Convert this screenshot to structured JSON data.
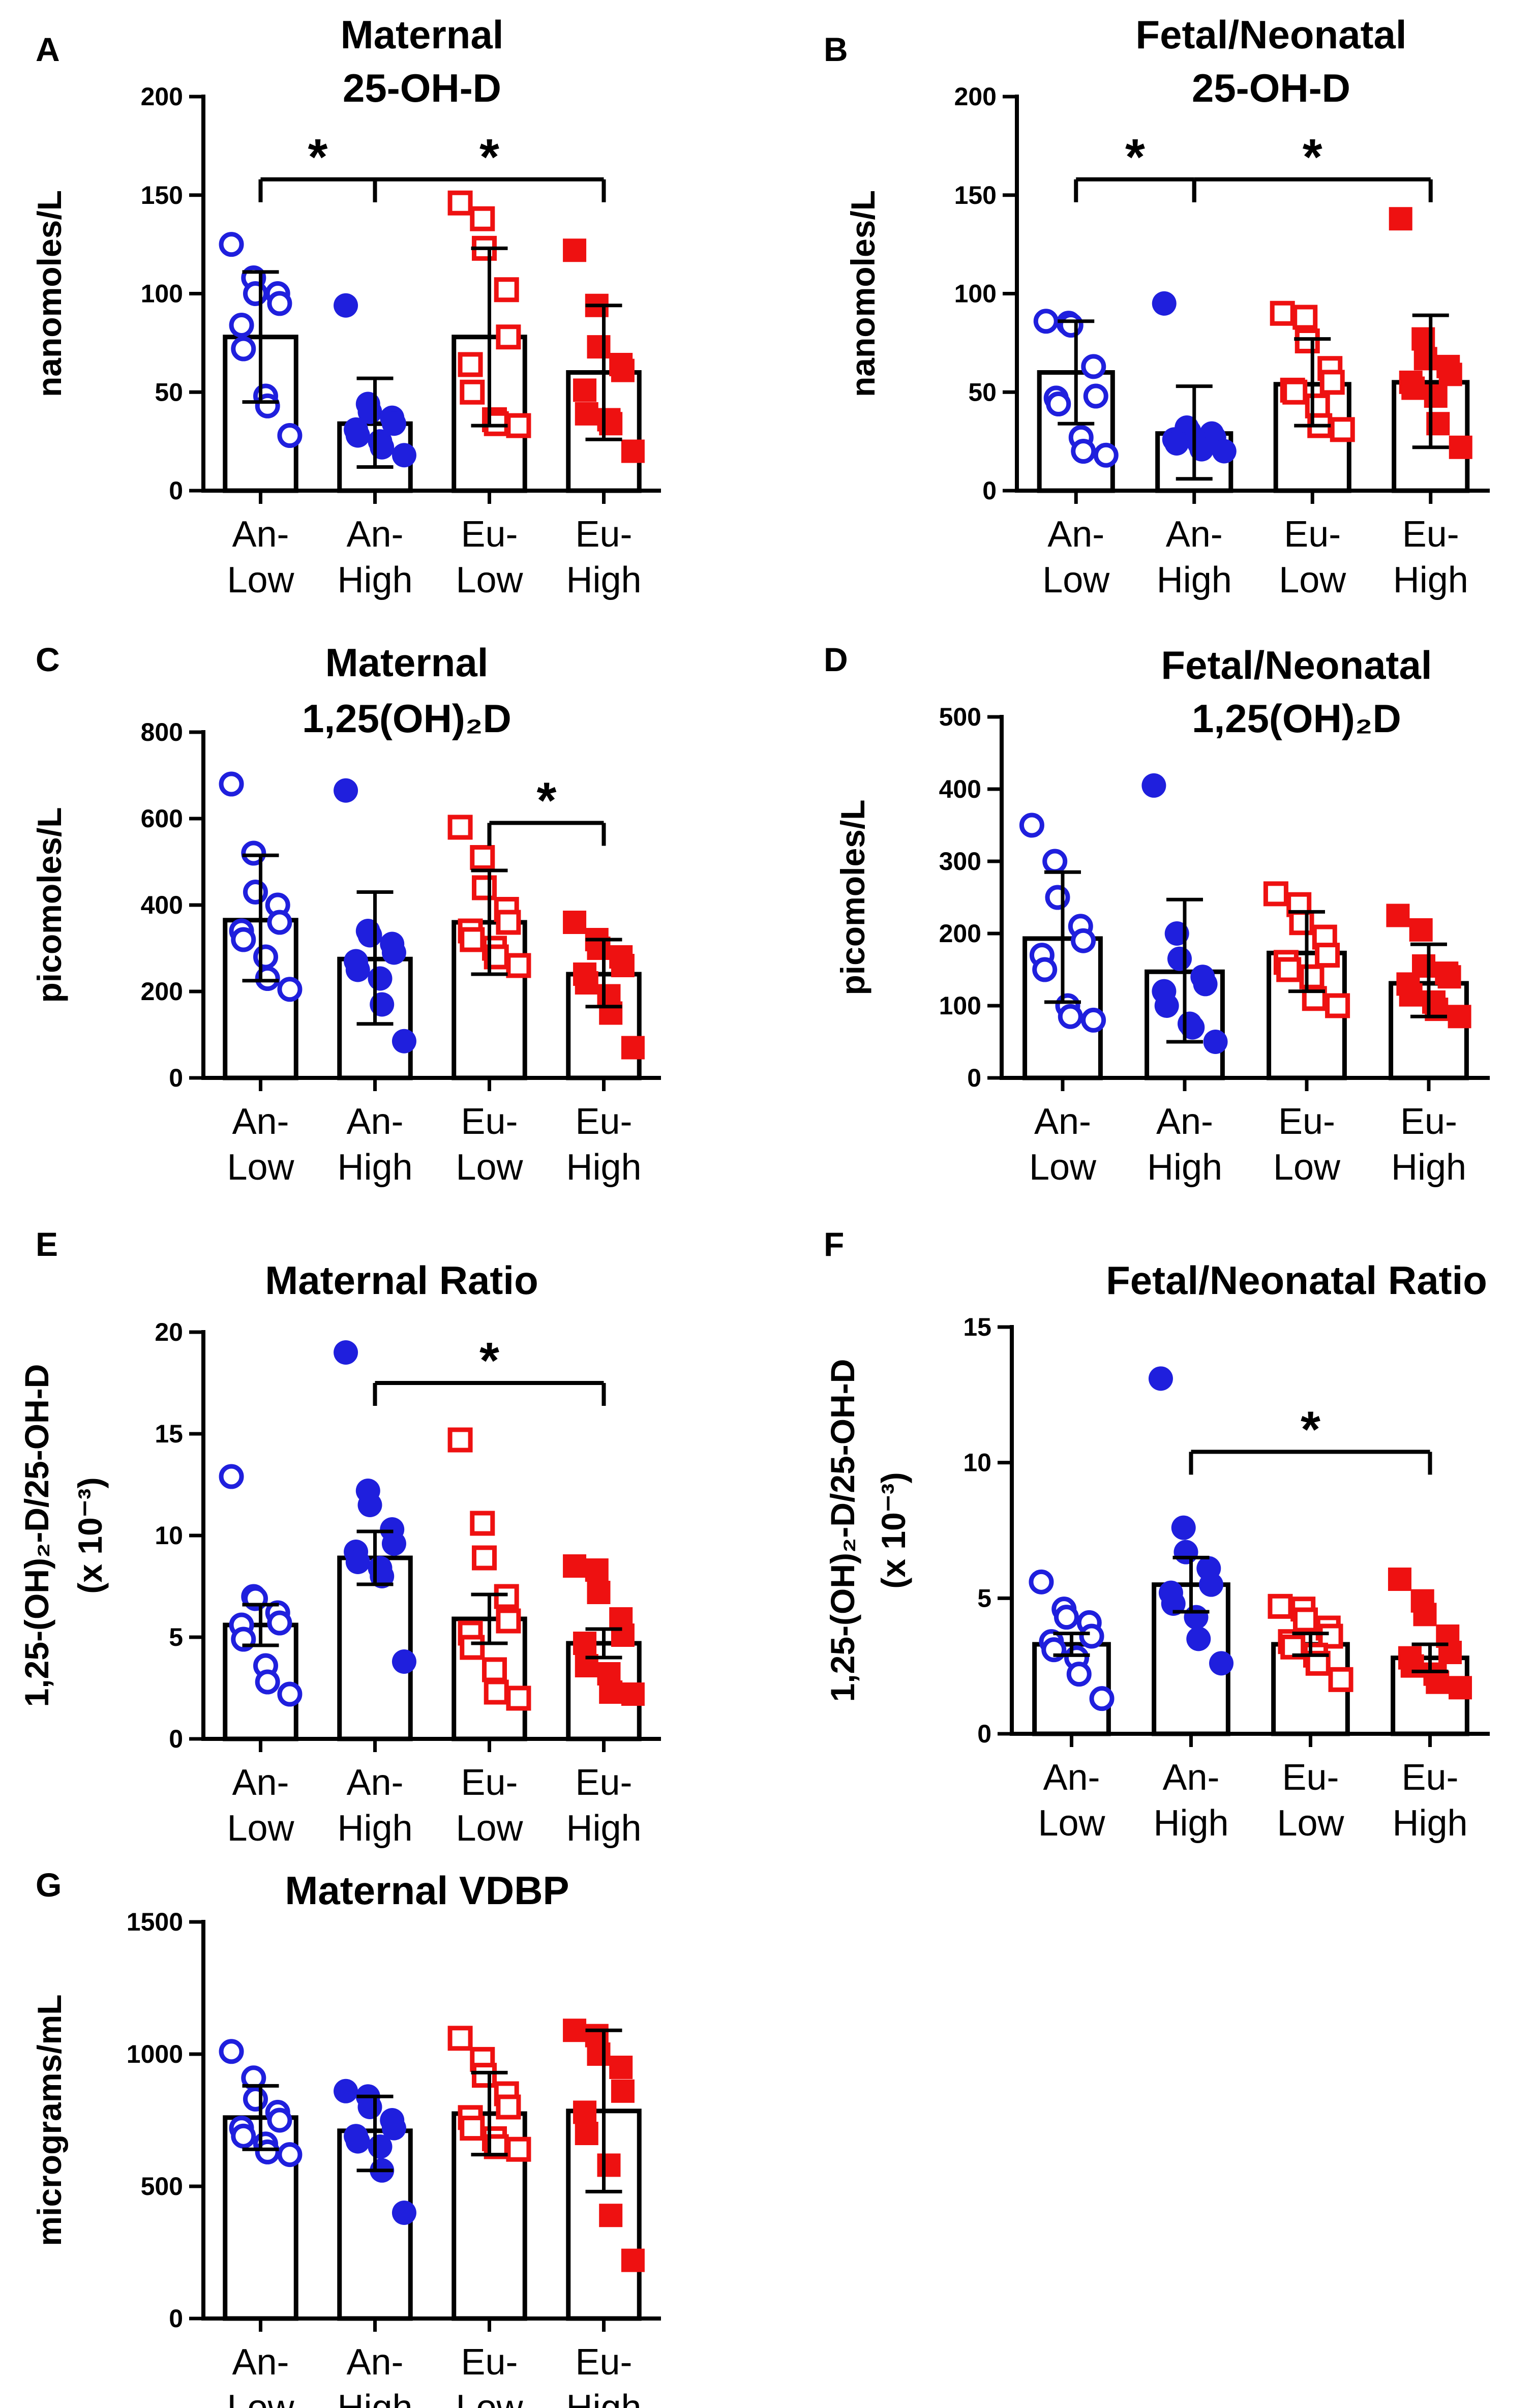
{
  "colors": {
    "an": "#1f1fdd",
    "eu": "#ee1111",
    "axis": "#000000"
  },
  "chart_data": [
    {
      "panel": "A",
      "title_lines": [
        "Maternal",
        "25-OH-D"
      ],
      "ylabel": "nanomoles/L",
      "type": "bar",
      "ylim": [
        0,
        200
      ],
      "yticks": [
        0,
        50,
        100,
        150,
        200
      ],
      "categories": [
        "An-Low",
        "An-High",
        "Eu-Low",
        "Eu-High"
      ],
      "cat_lines": [
        [
          "An-",
          "Low"
        ],
        [
          "An-",
          "High"
        ],
        [
          "Eu-",
          "Low"
        ],
        [
          "Eu-",
          "High"
        ]
      ],
      "means": [
        78,
        34,
        78,
        60
      ],
      "err_low": [
        45,
        12,
        33,
        26
      ],
      "err_high": [
        111,
        57,
        123,
        94
      ],
      "points": [
        [
          125,
          108,
          100,
          100,
          95,
          84,
          72,
          48,
          43,
          28
        ],
        [
          94,
          44,
          40,
          37,
          34,
          31,
          28,
          25,
          22,
          18
        ],
        [
          146,
          138,
          123,
          102,
          78,
          64,
          50,
          36,
          34,
          33
        ],
        [
          122,
          94,
          73,
          64,
          61,
          51,
          39,
          36,
          34,
          20
        ]
      ],
      "brackets": [
        {
          "from": 0,
          "to": 1,
          "label": "*"
        },
        {
          "from": 1,
          "to": 3,
          "label": "*"
        }
      ]
    },
    {
      "panel": "B",
      "title_lines": [
        "Fetal/Neonatal",
        "25-OH-D"
      ],
      "ylabel": "nanomoles/L",
      "type": "bar",
      "ylim": [
        0,
        200
      ],
      "yticks": [
        0,
        50,
        100,
        150,
        200
      ],
      "categories": [
        "An-Low",
        "An-High",
        "Eu-Low",
        "Eu-High"
      ],
      "cat_lines": [
        [
          "An-",
          "Low"
        ],
        [
          "An-",
          "High"
        ],
        [
          "Eu-",
          "Low"
        ],
        [
          "Eu-",
          "High"
        ]
      ],
      "means": [
        60,
        29,
        54,
        55
      ],
      "err_low": [
        34,
        6,
        33,
        22
      ],
      "err_high": [
        86,
        53,
        77,
        89
      ],
      "points": [
        [
          86,
          85,
          84,
          63,
          48,
          47,
          44,
          27,
          20,
          18
        ],
        [
          95,
          32,
          30,
          29,
          27,
          26,
          24,
          24,
          21,
          20
        ],
        [
          90,
          88,
          76,
          62,
          55,
          51,
          50,
          43,
          33,
          31
        ],
        [
          138,
          77,
          67,
          63,
          59,
          55,
          52,
          48,
          34,
          22
        ]
      ],
      "brackets": [
        {
          "from": 0,
          "to": 1,
          "label": "*"
        },
        {
          "from": 1,
          "to": 3,
          "label": "*"
        }
      ]
    },
    {
      "panel": "C",
      "title_lines": [
        "Maternal",
        "1,25(OH)₂D"
      ],
      "ylabel": "picomoles/L",
      "type": "bar",
      "ylim": [
        0,
        800
      ],
      "yticks": [
        0,
        200,
        400,
        600,
        800
      ],
      "categories": [
        "An-Low",
        "An-High",
        "Eu-Low",
        "Eu-High"
      ],
      "cat_lines": [
        [
          "An-",
          "Low"
        ],
        [
          "An-",
          "High"
        ],
        [
          "Eu-",
          "Low"
        ],
        [
          "Eu-",
          "High"
        ]
      ],
      "means": [
        365,
        275,
        360,
        240
      ],
      "err_low": [
        225,
        125,
        240,
        165
      ],
      "err_high": [
        515,
        430,
        480,
        320
      ],
      "points": [
        [
          680,
          520,
          430,
          400,
          360,
          340,
          320,
          280,
          230,
          205
        ],
        [
          665,
          340,
          330,
          310,
          290,
          270,
          250,
          230,
          170,
          85
        ],
        [
          580,
          510,
          440,
          390,
          360,
          340,
          320,
          300,
          280,
          260
        ],
        [
          360,
          320,
          300,
          280,
          260,
          240,
          220,
          190,
          150,
          70
        ]
      ],
      "brackets": [
        {
          "from": 2,
          "to": 3,
          "label": "*"
        }
      ]
    },
    {
      "panel": "D",
      "title_lines": [
        "Fetal/Neonatal",
        "1,25(OH)₂D"
      ],
      "ylabel": "picomoles/L",
      "type": "bar",
      "ylim": [
        0,
        500
      ],
      "yticks": [
        0,
        100,
        200,
        300,
        400,
        500
      ],
      "categories": [
        "An-Low",
        "An-High",
        "Eu-Low",
        "Eu-High"
      ],
      "cat_lines": [
        [
          "An-",
          "Low"
        ],
        [
          "An-",
          "High"
        ],
        [
          "Eu-",
          "Low"
        ],
        [
          "Eu-",
          "High"
        ]
      ],
      "means": [
        193,
        147,
        173,
        131
      ],
      "err_low": [
        105,
        50,
        120,
        85
      ],
      "err_high": [
        285,
        247,
        230,
        185
      ],
      "points": [
        [
          350,
          300,
          250,
          210,
          190,
          170,
          150,
          100,
          85,
          80
        ],
        [
          405,
          200,
          165,
          140,
          130,
          120,
          100,
          75,
          70,
          50
        ],
        [
          255,
          240,
          215,
          195,
          170,
          160,
          150,
          140,
          110,
          100
        ],
        [
          225,
          205,
          155,
          145,
          140,
          130,
          115,
          105,
          95,
          85
        ]
      ],
      "brackets": []
    },
    {
      "panel": "E",
      "title_lines": [
        "Maternal Ratio"
      ],
      "ylabel": "1,25-(OH)₂-D/25-OH-D",
      "ylabel2": "(x 10⁻³)",
      "type": "bar",
      "ylim": [
        0,
        20
      ],
      "yticks": [
        0,
        5,
        10,
        15,
        20
      ],
      "categories": [
        "An-Low",
        "An-High",
        "Eu-Low",
        "Eu-High"
      ],
      "cat_lines": [
        [
          "An-",
          "Low"
        ],
        [
          "An-",
          "High"
        ],
        [
          "Eu-",
          "Low"
        ],
        [
          "Eu-",
          "High"
        ]
      ],
      "means": [
        5.6,
        8.9,
        5.9,
        4.7
      ],
      "err_low": [
        4.6,
        7.6,
        4.7,
        4.0
      ],
      "err_high": [
        6.6,
        10.2,
        7.1,
        5.4
      ],
      "points": [
        [
          12.9,
          7.0,
          6.9,
          6.2,
          5.7,
          5.6,
          4.9,
          3.6,
          2.8,
          2.2
        ],
        [
          19.0,
          12.2,
          11.5,
          10.3,
          9.6,
          9.2,
          8.7,
          8.4,
          8.0,
          3.8
        ],
        [
          14.7,
          10.6,
          8.9,
          7.0,
          5.8,
          5.2,
          4.5,
          3.4,
          2.3,
          2.0
        ],
        [
          8.5,
          8.3,
          7.2,
          5.9,
          5.1,
          4.7,
          3.6,
          3.2,
          2.3,
          2.2
        ]
      ],
      "brackets": [
        {
          "from": 1,
          "to": 3,
          "label": "*"
        }
      ]
    },
    {
      "panel": "F",
      "title_lines": [
        "Fetal/Neonatal Ratio"
      ],
      "ylabel": "1,25-(OH)₂-D/25-OH-D",
      "ylabel2": "(x 10⁻³)",
      "type": "bar",
      "ylim": [
        0,
        15
      ],
      "yticks": [
        0,
        5,
        10,
        15
      ],
      "categories": [
        "An-Low",
        "An-High",
        "Eu-Low",
        "Eu-High"
      ],
      "cat_lines": [
        [
          "An-",
          "Low"
        ],
        [
          "An-",
          "High"
        ],
        [
          "Eu-",
          "Low"
        ],
        [
          "Eu-",
          "High"
        ]
      ],
      "means": [
        3.3,
        5.5,
        3.3,
        2.8
      ],
      "err_low": [
        2.9,
        4.5,
        2.9,
        2.3
      ],
      "err_high": [
        3.7,
        6.5,
        3.7,
        3.3
      ],
      "points": [
        [
          5.6,
          4.6,
          4.3,
          4.1,
          3.6,
          3.4,
          3.1,
          2.8,
          2.2,
          1.3
        ],
        [
          13.1,
          7.6,
          6.7,
          6.1,
          5.5,
          5.2,
          4.8,
          4.3,
          3.5,
          2.6
        ],
        [
          4.7,
          4.6,
          4.2,
          3.9,
          3.6,
          3.4,
          3.2,
          2.9,
          2.6,
          2.0
        ],
        [
          5.7,
          4.9,
          4.4,
          3.6,
          3.0,
          2.8,
          2.5,
          2.2,
          1.9,
          1.7
        ]
      ],
      "brackets": [
        {
          "from": 1,
          "to": 3,
          "label": "*"
        }
      ]
    },
    {
      "panel": "G",
      "title_lines": [
        "Maternal VDBP"
      ],
      "ylabel": "micrograms/mL",
      "type": "bar",
      "ylim": [
        0,
        1500
      ],
      "yticks": [
        0,
        500,
        1000,
        1500
      ],
      "categories": [
        "An-Low",
        "An-High",
        "Eu-Low",
        "Eu-High"
      ],
      "cat_lines": [
        [
          "An-",
          "Low"
        ],
        [
          "An-",
          "High"
        ],
        [
          "Eu-",
          "Low"
        ],
        [
          "Eu-",
          "High"
        ]
      ],
      "means": [
        760,
        710,
        775,
        785
      ],
      "err_low": [
        640,
        560,
        620,
        480
      ],
      "err_high": [
        880,
        840,
        930,
        1090
      ],
      "points": [
        [
          1010,
          910,
          830,
          780,
          750,
          720,
          690,
          660,
          630,
          620
        ],
        [
          860,
          840,
          800,
          750,
          720,
          690,
          670,
          650,
          560,
          400
        ],
        [
          1060,
          980,
          920,
          850,
          800,
          760,
          720,
          680,
          650,
          640
        ],
        [
          1090,
          1070,
          1000,
          950,
          860,
          780,
          700,
          580,
          390,
          220
        ]
      ],
      "brackets": []
    }
  ]
}
